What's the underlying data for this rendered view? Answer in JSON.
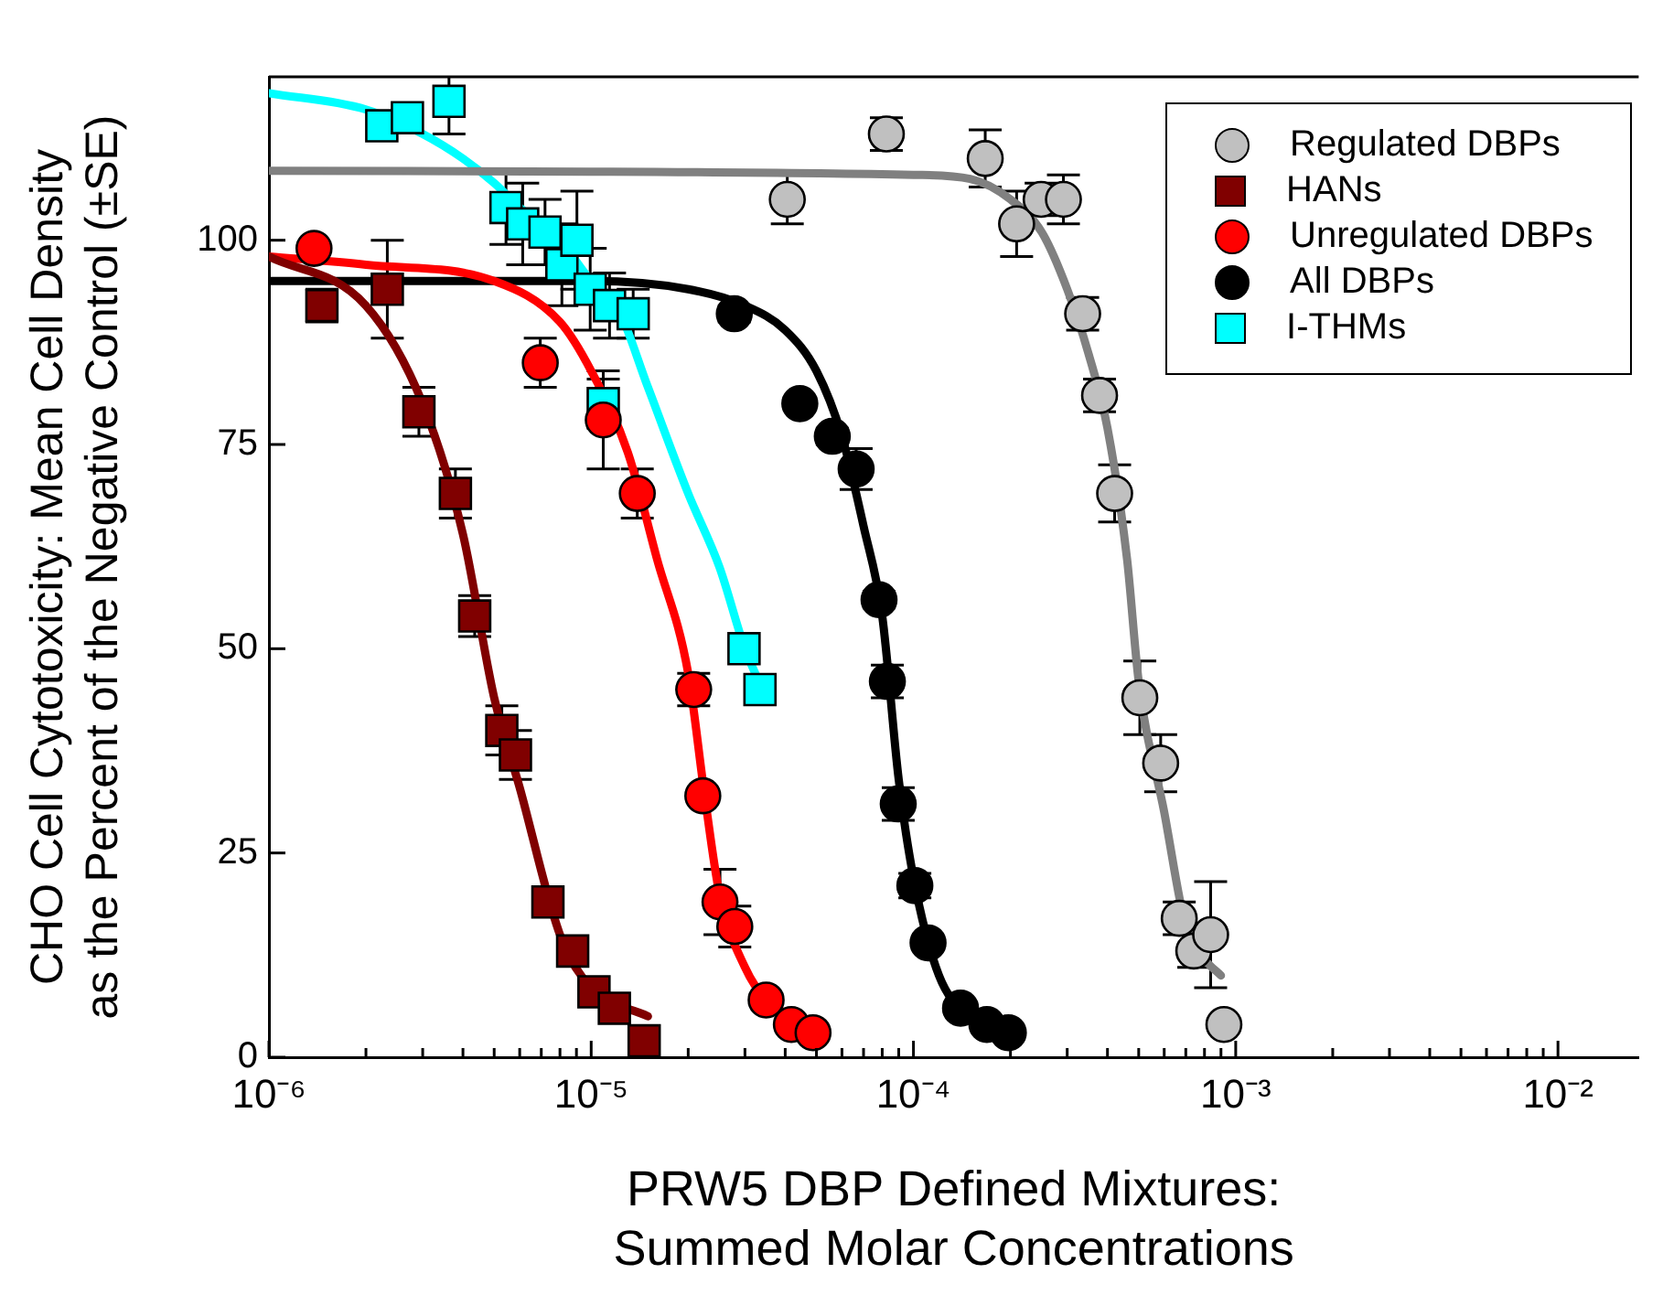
{
  "chart_data": {
    "type": "scatter",
    "xlabel": "PRW5 DBP Defined Mixtures:\nSummed Molar Concentrations",
    "ylabel": "CHO Cell Cytotoxicity: Mean Cell Density\nas the Percent of the Negative Control (±SE)",
    "log": "x",
    "grid": false,
    "legend": "top right",
    "xlim": [
      1e-06,
      0.0178
    ],
    "ylim": [
      0,
      120
    ],
    "yticks": [
      0,
      25,
      50,
      75,
      100
    ],
    "xticks": [
      {
        "value": 1e-06,
        "label": "10⁻⁶"
      },
      {
        "value": 2e-06,
        "label": null
      },
      {
        "value": 3e-06,
        "label": null
      },
      {
        "value": 4e-06,
        "label": null
      },
      {
        "value": 5e-06,
        "label": null
      },
      {
        "value": 6e-06,
        "label": null
      },
      {
        "value": 7e-06,
        "label": null
      },
      {
        "value": 8e-06,
        "label": null
      },
      {
        "value": 9e-06,
        "label": null
      },
      {
        "value": 1e-05,
        "label": "10⁻⁵"
      },
      {
        "value": 2e-05,
        "label": null
      },
      {
        "value": 3e-05,
        "label": null
      },
      {
        "value": 4e-05,
        "label": null
      },
      {
        "value": 5e-05,
        "label": null
      },
      {
        "value": 6e-05,
        "label": null
      },
      {
        "value": 7e-05,
        "label": null
      },
      {
        "value": 8e-05,
        "label": null
      },
      {
        "value": 9e-05,
        "label": null
      },
      {
        "value": 0.0001,
        "label": "10⁻⁴"
      },
      {
        "value": 0.0002,
        "label": null
      },
      {
        "value": 0.0003,
        "label": null
      },
      {
        "value": 0.0004,
        "label": null
      },
      {
        "value": 0.0005,
        "label": null
      },
      {
        "value": 0.0006,
        "label": null
      },
      {
        "value": 0.0007,
        "label": null
      },
      {
        "value": 0.0008,
        "label": null
      },
      {
        "value": 0.0009,
        "label": null
      },
      {
        "value": 0.001,
        "label": "10⁻³"
      },
      {
        "value": 0.002,
        "label": null
      },
      {
        "value": 0.003,
        "label": null
      },
      {
        "value": 0.004,
        "label": null
      },
      {
        "value": 0.005,
        "label": null
      },
      {
        "value": 0.006,
        "label": null
      },
      {
        "value": 0.007,
        "label": null
      },
      {
        "value": 0.008,
        "label": null
      },
      {
        "value": 0.009,
        "label": null
      },
      {
        "value": 0.01,
        "label": "10⁻²"
      }
    ],
    "series": [
      {
        "name": "Regulated DBPs",
        "marker": "circle",
        "color": "#c0c0c0",
        "x": [
          4.06e-05,
          8.24e-05,
          0.000167,
          0.000209,
          0.000249,
          0.000292,
          0.000335,
          0.000378,
          0.000421,
          0.000504,
          0.000585,
          0.000668,
          0.000741,
          0.000836,
          0.000919
        ],
        "values": [
          105,
          113,
          110,
          102,
          105,
          105,
          91,
          81,
          69,
          44,
          36,
          17,
          13,
          15,
          4
        ],
        "errors": [
          3,
          2,
          3.5,
          4,
          2,
          3,
          2,
          2,
          3.5,
          4.5,
          3.5,
          2,
          2,
          6.5,
          null
        ]
      },
      {
        "name": "HANs",
        "marker": "square",
        "color": "#800000",
        "x": [
          1.46e-06,
          2.33e-06,
          2.92e-06,
          3.79e-06,
          4.35e-06,
          5.28e-06,
          5.82e-06,
          7.34e-06,
          8.76e-06,
          1.02e-05,
          1.18e-05,
          1.46e-05
        ],
        "values": [
          92,
          94,
          79,
          69,
          54,
          40,
          37,
          19,
          13,
          8,
          6,
          2
        ],
        "errors": [
          2,
          6,
          3,
          3,
          2.5,
          3,
          3,
          null,
          null,
          null,
          null,
          null
        ]
      },
      {
        "name": "Unregulated DBPs",
        "marker": "circle",
        "color": "#ff0000",
        "x": [
          1.38e-06,
          6.95e-06,
          1.09e-05,
          1.39e-05,
          2.08e-05,
          2.22e-05,
          2.51e-05,
          2.79e-05,
          3.49e-05,
          4.18e-05,
          4.88e-05
        ],
        "values": [
          99,
          85,
          78,
          69,
          45,
          32,
          19,
          16,
          7,
          4,
          3
        ],
        "errors": [
          null,
          3,
          6,
          3,
          2,
          null,
          4,
          2.5,
          null,
          null,
          null
        ]
      },
      {
        "name": "All DBPs",
        "marker": "circle",
        "color": "#000000",
        "x": [
          2.78e-05,
          4.44e-05,
          5.6e-05,
          6.64e-05,
          7.82e-05,
          8.3e-05,
          8.97e-05,
          0.000101,
          0.000111,
          0.00014,
          0.000169,
          0.000197
        ],
        "values": [
          91,
          80,
          76,
          72,
          56,
          46,
          31,
          21,
          14,
          6,
          4,
          3
        ],
        "errors": [
          1,
          null,
          1,
          2.5,
          1,
          2,
          2,
          1.5,
          null,
          null,
          null,
          null
        ]
      },
      {
        "name": "I-THMs",
        "marker": "square",
        "color": "#00ffff",
        "x": [
          2.24e-06,
          2.69e-06,
          3.62e-06,
          5.44e-06,
          6.13e-06,
          7.19e-06,
          8.11e-06,
          9.03e-06,
          9.93e-06,
          1.09e-05,
          1.14e-05,
          1.35e-05,
          2.98e-05,
          3.34e-05
        ],
        "values": [
          114,
          115,
          117,
          104,
          102,
          101,
          97,
          100,
          94,
          80,
          92,
          91,
          50,
          45
        ],
        "errors": [
          null,
          null,
          4,
          4.5,
          5,
          4,
          5,
          6,
          5,
          3,
          4,
          3,
          null,
          null
        ]
      },
      {
        "type": "line",
        "color": "#808080",
        "x": [
          1e-06,
          1e-05,
          0.0001,
          0.00015,
          0.0002,
          0.00025,
          0.0003,
          0.00035,
          0.0004,
          0.00046,
          0.0005,
          0.0006,
          0.0007,
          0.0008,
          0.0009
        ],
        "values": [
          108.5,
          108.4,
          108,
          107.5,
          105,
          101,
          94,
          86,
          77,
          61,
          46,
          30,
          16,
          12,
          10
        ]
      },
      {
        "type": "line",
        "color": "#800000",
        "x": [
          1e-06,
          2e-06,
          3e-06,
          4e-06,
          5e-06,
          6e-06,
          8e-06,
          1e-05,
          1.5e-05
        ],
        "values": [
          98,
          92,
          80,
          64,
          44,
          33,
          15,
          8.5,
          5
        ]
      },
      {
        "type": "line",
        "color": "#ff0000",
        "x": [
          1e-06,
          2e-06,
          5e-06,
          8e-06,
          1e-05,
          1.3e-05,
          1.6e-05,
          2e-05,
          2.25e-05,
          2.5e-05,
          3e-05,
          3.5e-05,
          4.5e-05
        ],
        "values": [
          98,
          97,
          95,
          90,
          84,
          74,
          61,
          47,
          32,
          20,
          11,
          7,
          4.5
        ]
      },
      {
        "type": "line",
        "color": "#000000",
        "x": [
          1e-06,
          1e-05,
          2e-05,
          3e-05,
          4e-05,
          5e-05,
          6e-05,
          7e-05,
          8e-05,
          9e-05,
          0.0001,
          0.00012,
          0.00015,
          0.0002
        ],
        "values": [
          95,
          95,
          94,
          92,
          89,
          84,
          76,
          65,
          54,
          34,
          22,
          10,
          5,
          2.5
        ]
      },
      {
        "type": "line",
        "color": "#00ffff",
        "x": [
          1e-06,
          2e-06,
          3e-06,
          4e-06,
          5e-06,
          6e-06,
          8e-06,
          1e-05,
          1.2e-05,
          1.5e-05,
          2e-05,
          2.5e-05,
          3e-05,
          3.4e-05
        ],
        "values": [
          118,
          116,
          113,
          110,
          107,
          104,
          100,
          95,
          92,
          82,
          69,
          60,
          50,
          45
        ]
      }
    ]
  }
}
